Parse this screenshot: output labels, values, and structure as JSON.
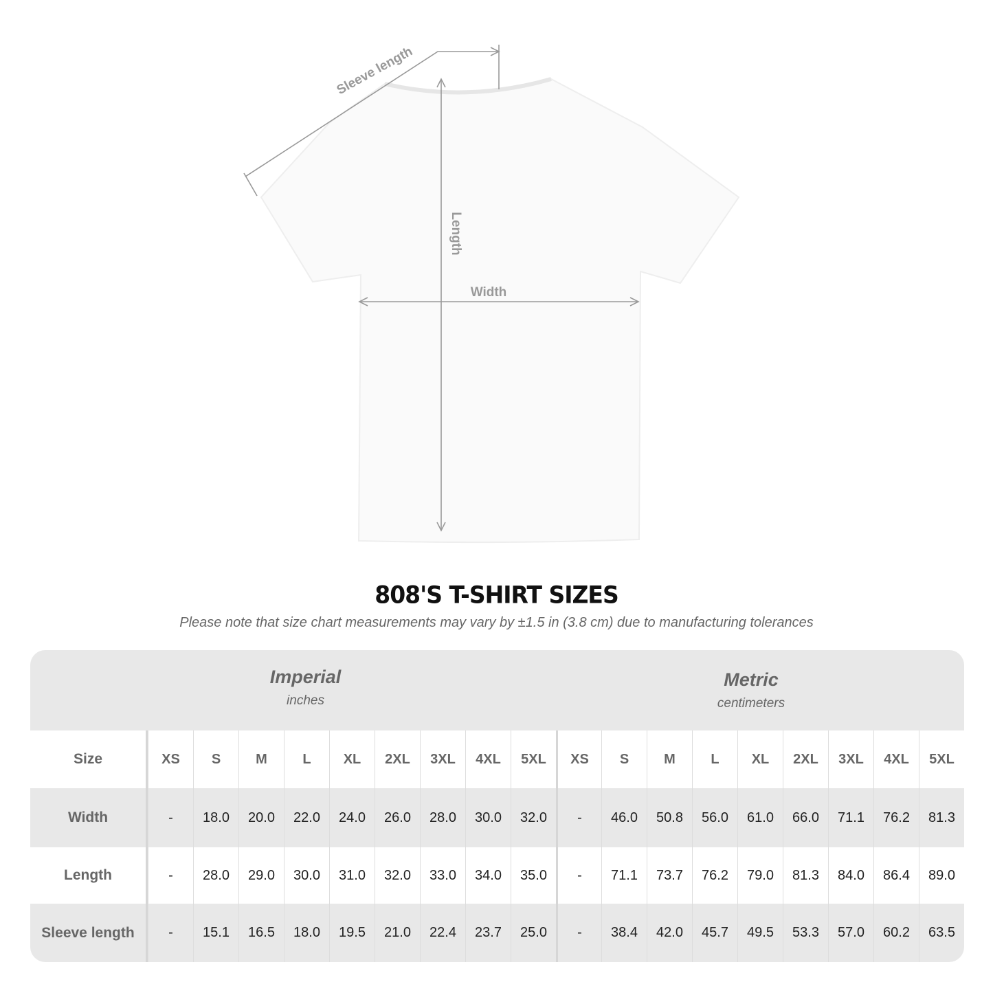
{
  "diagram": {
    "labels": {
      "sleeve": "Sleeve length",
      "length": "Length",
      "width": "Width"
    },
    "shirt_color": "#ffffff",
    "line_color": "#999999"
  },
  "title": "808'S T-SHIRT SIZES",
  "subtitle": "Please note that size chart measurements may vary by ±1.5 in (3.8 cm) due to manufacturing tolerances",
  "table": {
    "imperial": {
      "name": "Imperial",
      "unit": "inches"
    },
    "metric": {
      "name": "Metric",
      "unit": "centimeters"
    },
    "size_label": "Size",
    "sizes": [
      "XS",
      "S",
      "M",
      "L",
      "XL",
      "2XL",
      "3XL",
      "4XL",
      "5XL"
    ],
    "rows": [
      {
        "label": "Width",
        "imperial": [
          "-",
          "18.0",
          "20.0",
          "22.0",
          "24.0",
          "26.0",
          "28.0",
          "30.0",
          "32.0"
        ],
        "metric": [
          "-",
          "46.0",
          "50.8",
          "56.0",
          "61.0",
          "66.0",
          "71.1",
          "76.2",
          "81.3"
        ]
      },
      {
        "label": "Length",
        "imperial": [
          "-",
          "28.0",
          "29.0",
          "30.0",
          "31.0",
          "32.0",
          "33.0",
          "34.0",
          "35.0"
        ],
        "metric": [
          "-",
          "71.1",
          "73.7",
          "76.2",
          "79.0",
          "81.3",
          "84.0",
          "86.4",
          "89.0"
        ]
      },
      {
        "label": "Sleeve length",
        "imperial": [
          "-",
          "15.1",
          "16.5",
          "18.0",
          "19.5",
          "21.0",
          "22.4",
          "23.7",
          "25.0"
        ],
        "metric": [
          "-",
          "38.4",
          "42.0",
          "45.7",
          "49.5",
          "53.3",
          "57.0",
          "60.2",
          "63.5"
        ]
      }
    ]
  }
}
